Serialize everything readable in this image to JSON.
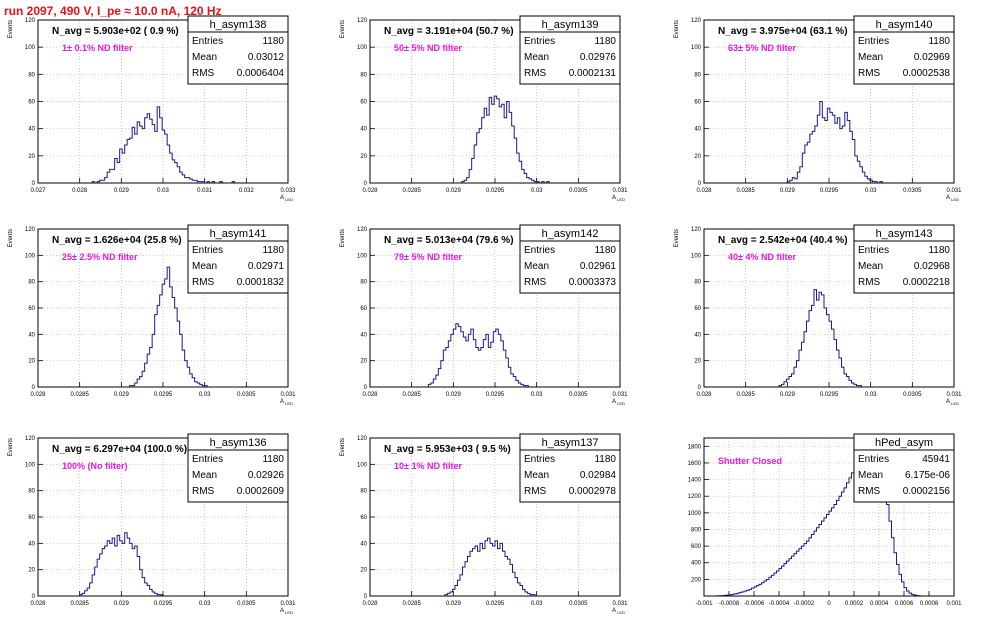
{
  "header": {
    "run_label": "run 2097,   490 V, I_pe ≈ 10.0 nA, 120 Hz"
  },
  "colors": {
    "title_red": "#e8101a",
    "magenta": "#e619e6",
    "hist_line": "#1a1a8c",
    "grid": "#b4b4b4"
  },
  "chart_data": [
    {
      "type": "histogram",
      "stats": {
        "name": "h_asym138",
        "entries_label": "Entries",
        "entries": "1180",
        "mean_label": "Mean",
        "mean": "0.03012",
        "rms_label": "RMS",
        "rms": "0.0006404"
      },
      "navg": "N_avg = 5.903e+02 ( 0.9 %)",
      "filter": "1± 0.1% ND filter",
      "ylabel": "Events",
      "xlabel": "A",
      "xlim": [
        0.027,
        0.033
      ],
      "ylim": [
        0,
        120
      ],
      "xticks": [
        "0.027",
        "0.028",
        "0.029",
        "0.03",
        "0.031",
        "0.032",
        "0.033"
      ],
      "yticks": [
        "0",
        "20",
        "40",
        "60",
        "80",
        "100",
        "120"
      ],
      "bins": {
        "x0": 0.0283,
        "x1": 0.0319,
        "width": 6e-05,
        "counts": [
          1,
          0,
          1,
          2,
          2,
          4,
          8,
          10,
          10,
          18,
          15,
          25,
          22,
          28,
          32,
          33,
          41,
          36,
          45,
          42,
          40,
          48,
          51,
          47,
          43,
          38,
          56,
          48,
          39,
          36,
          28,
          22,
          17,
          15,
          12,
          8,
          6,
          4,
          4,
          3,
          2,
          2,
          1,
          1,
          1,
          0,
          1,
          0,
          1,
          0,
          0,
          1,
          0,
          0,
          0,
          0,
          1,
          0,
          0,
          0
        ]
      }
    },
    {
      "type": "histogram",
      "stats": {
        "name": "h_asym139",
        "entries_label": "Entries",
        "entries": "1180",
        "mean_label": "Mean",
        "mean": "0.02976",
        "rms_label": "RMS",
        "rms": "0.0002131"
      },
      "navg": "N_avg = 3.191e+04 (50.7 %)",
      "filter": "50± 5% ND filter",
      "ylabel": "Events",
      "xlabel": "A",
      "xlim": [
        0.028,
        0.031
      ],
      "ylim": [
        0,
        120
      ],
      "xticks": [
        "0.028",
        "0.0285",
        "0.029",
        "0.0295",
        "0.03",
        "0.0305",
        "0.031"
      ],
      "yticks": [
        "0",
        "20",
        "40",
        "60",
        "80",
        "100",
        "120"
      ],
      "bins": {
        "x0": 0.0291,
        "x1": 0.0306,
        "width": 3e-05,
        "counts": [
          1,
          2,
          4,
          10,
          18,
          28,
          37,
          40,
          48,
          55,
          50,
          63,
          58,
          64,
          62,
          56,
          58,
          48,
          60,
          52,
          42,
          33,
          22,
          16,
          10,
          7,
          4,
          3,
          2,
          1,
          1,
          0,
          1,
          0,
          1,
          0,
          0,
          0,
          0,
          0,
          0,
          0,
          0,
          0,
          0,
          0,
          0,
          0,
          0,
          0
        ]
      }
    },
    {
      "type": "histogram",
      "stats": {
        "name": "h_asym140",
        "entries_label": "Entries",
        "entries": "1180",
        "mean_label": "Mean",
        "mean": "0.02969",
        "rms_label": "RMS",
        "rms": "0.0002538"
      },
      "navg": "N_avg = 3.975e+04 (63.1 %)",
      "filter": "63± 5% ND filter",
      "ylabel": "Events",
      "xlabel": "A",
      "xlim": [
        0.028,
        0.031
      ],
      "ylim": [
        0,
        120
      ],
      "xticks": [
        "0.028",
        "0.0285",
        "0.029",
        "0.0295",
        "0.03",
        "0.0305",
        "0.031"
      ],
      "yticks": [
        "0",
        "20",
        "40",
        "60",
        "80",
        "100",
        "120"
      ],
      "bins": {
        "x0": 0.029,
        "x1": 0.0306,
        "width": 3e-05,
        "counts": [
          1,
          2,
          4,
          3,
          8,
          12,
          22,
          28,
          30,
          36,
          38,
          42,
          50,
          60,
          48,
          46,
          55,
          52,
          50,
          44,
          48,
          40,
          42,
          52,
          46,
          38,
          32,
          20,
          16,
          12,
          8,
          5,
          3,
          2,
          1,
          1,
          0,
          1,
          0,
          0,
          0,
          0,
          0,
          0,
          0,
          0,
          0,
          0,
          0,
          0,
          0,
          0,
          0
        ]
      }
    },
    {
      "type": "histogram",
      "stats": {
        "name": "h_asym141",
        "entries_label": "Entries",
        "entries": "1180",
        "mean_label": "Mean",
        "mean": "0.02971",
        "rms_label": "RMS",
        "rms": "0.0001832"
      },
      "navg": "N_avg = 1.626e+04 (25.8 %)",
      "filter": "25± 2.5% ND filter",
      "ylabel": "Events",
      "xlabel": "A",
      "xlim": [
        0.028,
        0.031
      ],
      "ylim": [
        0,
        120
      ],
      "xticks": [
        "0.028",
        "0.0285",
        "0.029",
        "0.0295",
        "0.03",
        "0.0305",
        "0.031"
      ],
      "yticks": [
        "0",
        "20",
        "40",
        "60",
        "80",
        "100",
        "120"
      ],
      "bins": {
        "x0": 0.0291,
        "x1": 0.0306,
        "width": 3e-05,
        "counts": [
          1,
          1,
          3,
          6,
          8,
          12,
          18,
          25,
          30,
          40,
          55,
          62,
          70,
          78,
          82,
          91,
          76,
          68,
          60,
          50,
          40,
          28,
          20,
          15,
          10,
          7,
          4,
          3,
          2,
          1,
          1,
          0,
          0,
          0,
          0,
          0,
          0,
          0,
          0,
          0,
          0,
          0,
          0,
          0,
          0,
          0,
          0,
          0,
          0,
          0
        ]
      }
    },
    {
      "type": "histogram",
      "stats": {
        "name": "h_asym142",
        "entries_label": "Entries",
        "entries": "1180",
        "mean_label": "Mean",
        "mean": "0.02961",
        "rms_label": "RMS",
        "rms": "0.0003373"
      },
      "navg": "N_avg = 5.013e+04 (79.6 %)",
      "filter": "79± 5% ND filter",
      "ylabel": "Events",
      "xlabel": "A",
      "xlim": [
        0.028,
        0.031
      ],
      "ylim": [
        0,
        120
      ],
      "xticks": [
        "0.028",
        "0.0285",
        "0.029",
        "0.0295",
        "0.03",
        "0.0305",
        "0.031"
      ],
      "yticks": [
        "0",
        "20",
        "40",
        "60",
        "80",
        "100",
        "120"
      ],
      "bins": {
        "x0": 0.0287,
        "x1": 0.0306,
        "width": 3e-05,
        "counts": [
          2,
          3,
          6,
          9,
          14,
          20,
          28,
          30,
          35,
          40,
          44,
          48,
          46,
          42,
          38,
          35,
          40,
          44,
          36,
          30,
          28,
          30,
          36,
          40,
          30,
          34,
          42,
          44,
          40,
          35,
          28,
          22,
          15,
          10,
          8,
          5,
          3,
          2,
          1,
          1,
          0,
          0,
          0,
          0,
          0,
          0,
          0,
          0,
          0,
          0,
          0,
          0,
          0,
          0,
          0,
          0,
          0,
          0,
          0,
          0,
          0,
          0,
          0
        ]
      }
    },
    {
      "type": "histogram",
      "stats": {
        "name": "h_asym143",
        "entries_label": "Entries",
        "entries": "1180",
        "mean_label": "Mean",
        "mean": "0.02968",
        "rms_label": "RMS",
        "rms": "0.0002218"
      },
      "navg": "N_avg = 2.542e+04 (40.4 %)",
      "filter": "40± 4% ND filter",
      "ylabel": "Events",
      "xlabel": "A",
      "xlim": [
        0.028,
        0.031
      ],
      "ylim": [
        0,
        120
      ],
      "xticks": [
        "0.028",
        "0.0285",
        "0.029",
        "0.0295",
        "0.03",
        "0.0305",
        "0.031"
      ],
      "yticks": [
        "0",
        "20",
        "40",
        "60",
        "80",
        "100",
        "120"
      ],
      "bins": {
        "x0": 0.0289,
        "x1": 0.0306,
        "width": 3e-05,
        "counts": [
          1,
          2,
          4,
          6,
          8,
          10,
          15,
          20,
          28,
          34,
          42,
          50,
          58,
          62,
          74,
          66,
          72,
          70,
          60,
          55,
          50,
          44,
          36,
          28,
          22,
          15,
          10,
          8,
          5,
          3,
          2,
          1,
          1,
          0,
          0,
          0,
          0,
          0,
          0,
          0,
          0,
          0,
          0,
          0,
          0,
          0,
          0,
          0,
          0,
          0,
          0,
          0,
          0,
          0,
          0,
          0,
          0
        ]
      }
    },
    {
      "type": "histogram",
      "stats": {
        "name": "h_asym136",
        "entries_label": "Entries",
        "entries": "1180",
        "mean_label": "Mean",
        "mean": "0.02926",
        "rms_label": "RMS",
        "rms": "0.0002609"
      },
      "navg": "N_avg = 6.297e+04 (100.0 %)",
      "filter": "100% (No filter)",
      "ylabel": "Events",
      "xlabel": "A",
      "xlim": [
        0.028,
        0.031
      ],
      "ylim": [
        0,
        120
      ],
      "xticks": [
        "0.028",
        "0.0285",
        "0.029",
        "0.0295",
        "0.03",
        "0.0305",
        "0.031"
      ],
      "yticks": [
        "0",
        "20",
        "40",
        "60",
        "80",
        "100",
        "120"
      ],
      "bins": {
        "x0": 0.0285,
        "x1": 0.0302,
        "width": 3e-05,
        "counts": [
          1,
          2,
          4,
          6,
          10,
          16,
          22,
          28,
          32,
          36,
          38,
          42,
          40,
          44,
          38,
          46,
          42,
          40,
          48,
          44,
          40,
          36,
          38,
          30,
          20,
          14,
          10,
          8,
          5,
          3,
          2,
          1,
          1,
          0,
          0,
          0,
          0,
          0,
          0,
          0,
          0,
          0,
          0,
          0,
          0,
          0,
          0,
          0,
          0,
          0,
          0,
          0,
          0,
          0,
          0,
          0,
          0
        ]
      }
    },
    {
      "type": "histogram",
      "stats": {
        "name": "h_asym137",
        "entries_label": "Entries",
        "entries": "1180",
        "mean_label": "Mean",
        "mean": "0.02984",
        "rms_label": "RMS",
        "rms": "0.0002978"
      },
      "navg": "N_avg = 5.953e+03 ( 9.5 %)",
      "filter": "10± 1% ND filter",
      "ylabel": "Events",
      "xlabel": "A",
      "xlim": [
        0.028,
        0.031
      ],
      "ylim": [
        0,
        120
      ],
      "xticks": [
        "0.028",
        "0.0285",
        "0.029",
        "0.0295",
        "0.03",
        "0.0305",
        "0.031"
      ],
      "yticks": [
        "0",
        "20",
        "40",
        "60",
        "80",
        "100",
        "120"
      ],
      "bins": {
        "x0": 0.0289,
        "x1": 0.0307,
        "width": 3e-05,
        "counts": [
          1,
          2,
          3,
          5,
          8,
          12,
          16,
          22,
          26,
          30,
          34,
          36,
          38,
          34,
          40,
          36,
          42,
          44,
          40,
          38,
          42,
          36,
          40,
          34,
          30,
          28,
          24,
          18,
          14,
          10,
          8,
          5,
          3,
          2,
          1,
          1,
          0,
          0,
          0,
          0,
          0,
          0,
          0,
          0,
          0,
          0,
          0,
          0,
          0,
          0,
          0,
          0,
          0,
          0,
          0,
          0,
          0,
          0,
          0,
          0
        ]
      }
    },
    {
      "type": "histogram",
      "stats": {
        "name": "hPed_asym",
        "entries_label": "Entries",
        "entries": "45941",
        "mean_label": "Mean",
        "mean": "6.175e-06",
        "rms_label": "RMS",
        "rms": "0.0002156"
      },
      "navg": "",
      "filter": "Shutter Closed",
      "ylabel": "",
      "xlabel": "",
      "xlim": [
        -0.001,
        0.001
      ],
      "ylim": [
        0,
        1900
      ],
      "xticks": [
        "-0.001",
        "-0.0008",
        "-0.0006",
        "-0.0004",
        "-0.0002",
        "0",
        "0.0002",
        "0.0004",
        "0.0006",
        "0.0008",
        "0.001"
      ],
      "yticks": [
        "200",
        "400",
        "600",
        "800",
        "1000",
        "1200",
        "1400",
        "1600",
        "1800"
      ],
      "bins": {
        "x0": -0.0009,
        "x1": 0.0007,
        "width": 2e-05,
        "counts": [
          2,
          3,
          5,
          8,
          10,
          14,
          20,
          26,
          32,
          40,
          48,
          58,
          68,
          80,
          95,
          110,
          125,
          140,
          160,
          180,
          200,
          225,
          250,
          275,
          300,
          330,
          360,
          390,
          420,
          450,
          480,
          510,
          540,
          570,
          600,
          630,
          660,
          700,
          740,
          780,
          820,
          860,
          900,
          940,
          980,
          1020,
          1060,
          1100,
          1150,
          1200,
          1250,
          1300,
          1360,
          1420,
          1480,
          1540,
          1600,
          1660,
          1720,
          1780,
          1830,
          1880,
          1820,
          1750,
          1700,
          1640,
          1500,
          1300,
          1100,
          900,
          700,
          520,
          380,
          260,
          170,
          100,
          60,
          35,
          20,
          10,
          5,
          2
        ]
      }
    }
  ]
}
